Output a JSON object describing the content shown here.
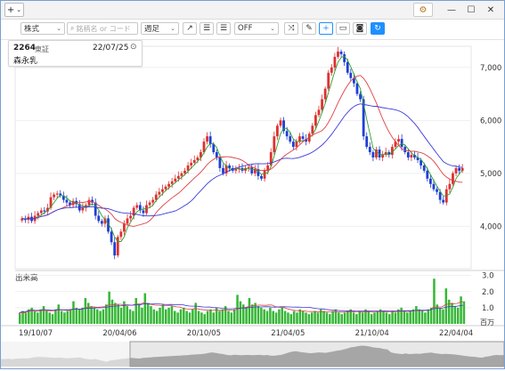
{
  "titlebar": {
    "add_label": "+",
    "add_caret": "⌄",
    "settings_icon": "gear-icon",
    "minimize": "—",
    "maximize": "☐",
    "close": "✕"
  },
  "toolbar": {
    "asset_type": "株式",
    "search_placeholder": "銘柄名 or コード",
    "period": "週足",
    "indicator_mode": "OFF",
    "icons": [
      "trend-line-icon",
      "align-left-icon",
      "align-right-icon",
      "shuffle-icon",
      "pencil-icon",
      "crosshair-icon",
      "rectangle-icon",
      "camera-icon",
      "refresh-icon"
    ]
  },
  "stock": {
    "code": "2264",
    "market": "東証",
    "date": "22/07/25",
    "name": "森永乳"
  },
  "chart_data": {
    "type": "candlestick",
    "price_axis": {
      "ticks": [
        "4,000",
        "5,000",
        "6,000",
        "7,000"
      ],
      "range": [
        3200,
        7400
      ]
    },
    "date_axis": {
      "ticks": [
        "19/10/07",
        "20/04/06",
        "20/10/05",
        "21/04/05",
        "21/10/04",
        "22/04/04"
      ]
    },
    "volume": {
      "label": "出来高",
      "unit": "百万",
      "ticks": [
        "1.0",
        "2.0",
        "3.0"
      ],
      "range": [
        0,
        3.2
      ],
      "values": [
        0.6,
        0.8,
        0.7,
        0.9,
        1.0,
        0.8,
        0.7,
        0.9,
        1.1,
        0.8,
        0.7,
        0.6,
        0.9,
        1.2,
        0.8,
        0.7,
        0.8,
        0.9,
        1.4,
        1.0,
        0.9,
        1.0,
        1.6,
        1.3,
        1.1,
        1.0,
        0.9,
        0.8,
        0.9,
        1.2,
        2.0,
        1.5,
        1.3,
        1.2,
        1.0,
        1.4,
        1.1,
        0.9,
        0.8,
        1.6,
        1.2,
        1.0,
        1.9,
        1.3,
        1.1,
        0.9,
        0.8,
        1.0,
        1.2,
        0.9,
        1.0,
        1.1,
        0.8,
        0.7,
        0.9,
        1.0,
        0.8,
        0.7,
        0.9,
        1.3,
        0.8,
        0.7,
        0.6,
        0.8,
        0.9,
        0.7,
        1.0,
        0.8,
        0.9,
        1.1,
        0.8,
        0.7,
        0.9,
        1.8,
        1.4,
        1.2,
        1.0,
        1.6,
        1.2,
        1.3,
        1.1,
        1.0,
        0.9,
        0.8,
        1.0,
        0.8,
        0.7,
        0.9,
        1.0,
        0.8,
        0.7,
        0.6,
        0.8,
        0.7,
        0.9,
        0.8,
        0.7,
        0.6,
        0.7,
        0.8,
        0.7,
        0.9,
        0.8,
        0.7,
        0.6,
        0.8,
        0.9,
        0.7,
        0.6,
        0.7,
        0.8,
        0.9,
        0.7,
        0.6,
        0.8,
        0.7,
        0.9,
        0.8,
        0.6,
        0.7,
        0.8,
        0.9,
        0.8,
        0.7,
        0.6,
        0.8,
        0.7,
        0.9,
        1.0,
        0.8,
        0.7,
        0.8,
        0.9,
        1.1,
        0.9,
        0.8,
        0.7,
        0.9,
        1.0,
        2.8,
        1.2,
        1.0,
        0.9,
        2.2,
        1.5,
        1.3,
        1.1,
        1.0,
        1.7,
        1.4
      ]
    },
    "closes": [
      4150,
      4120,
      4180,
      4100,
      4200,
      4250,
      4300,
      4280,
      4350,
      4550,
      4600,
      4620,
      4580,
      4500,
      4450,
      4400,
      4480,
      4420,
      4300,
      4350,
      4400,
      4500,
      4450,
      4200,
      4100,
      4050,
      4150,
      3900,
      3700,
      3450,
      3800,
      3900,
      4050,
      4150,
      4200,
      4350,
      4400,
      4300,
      4250,
      4400,
      4450,
      4500,
      4600,
      4650,
      4700,
      4750,
      4800,
      4850,
      4900,
      4950,
      5000,
      5050,
      5150,
      5200,
      5250,
      5300,
      5400,
      5600,
      5700,
      5550,
      5400,
      5300,
      5100,
      5000,
      5150,
      5100,
      5050,
      5080,
      5100,
      5050,
      5100,
      5120,
      5000,
      5080,
      4950,
      4900,
      5050,
      5150,
      5400,
      5700,
      5900,
      6000,
      5800,
      5700,
      5600,
      5500,
      5600,
      5700,
      5650,
      5600,
      5750,
      5900,
      6100,
      6200,
      6400,
      6600,
      6900,
      7000,
      7200,
      7300,
      7250,
      7100,
      6900,
      6800,
      6700,
      6500,
      6400,
      5700,
      5500,
      5400,
      5300,
      5450,
      5300,
      5350,
      5400,
      5350,
      5500,
      5600,
      5650,
      5500,
      5400,
      5300,
      5350,
      5300,
      5250,
      5150,
      5050,
      4900,
      4800,
      4700,
      4650,
      4500,
      4450,
      4700,
      4800,
      5000,
      5100,
      5050,
      5100
    ]
  },
  "navigator": {
    "visible": true
  }
}
